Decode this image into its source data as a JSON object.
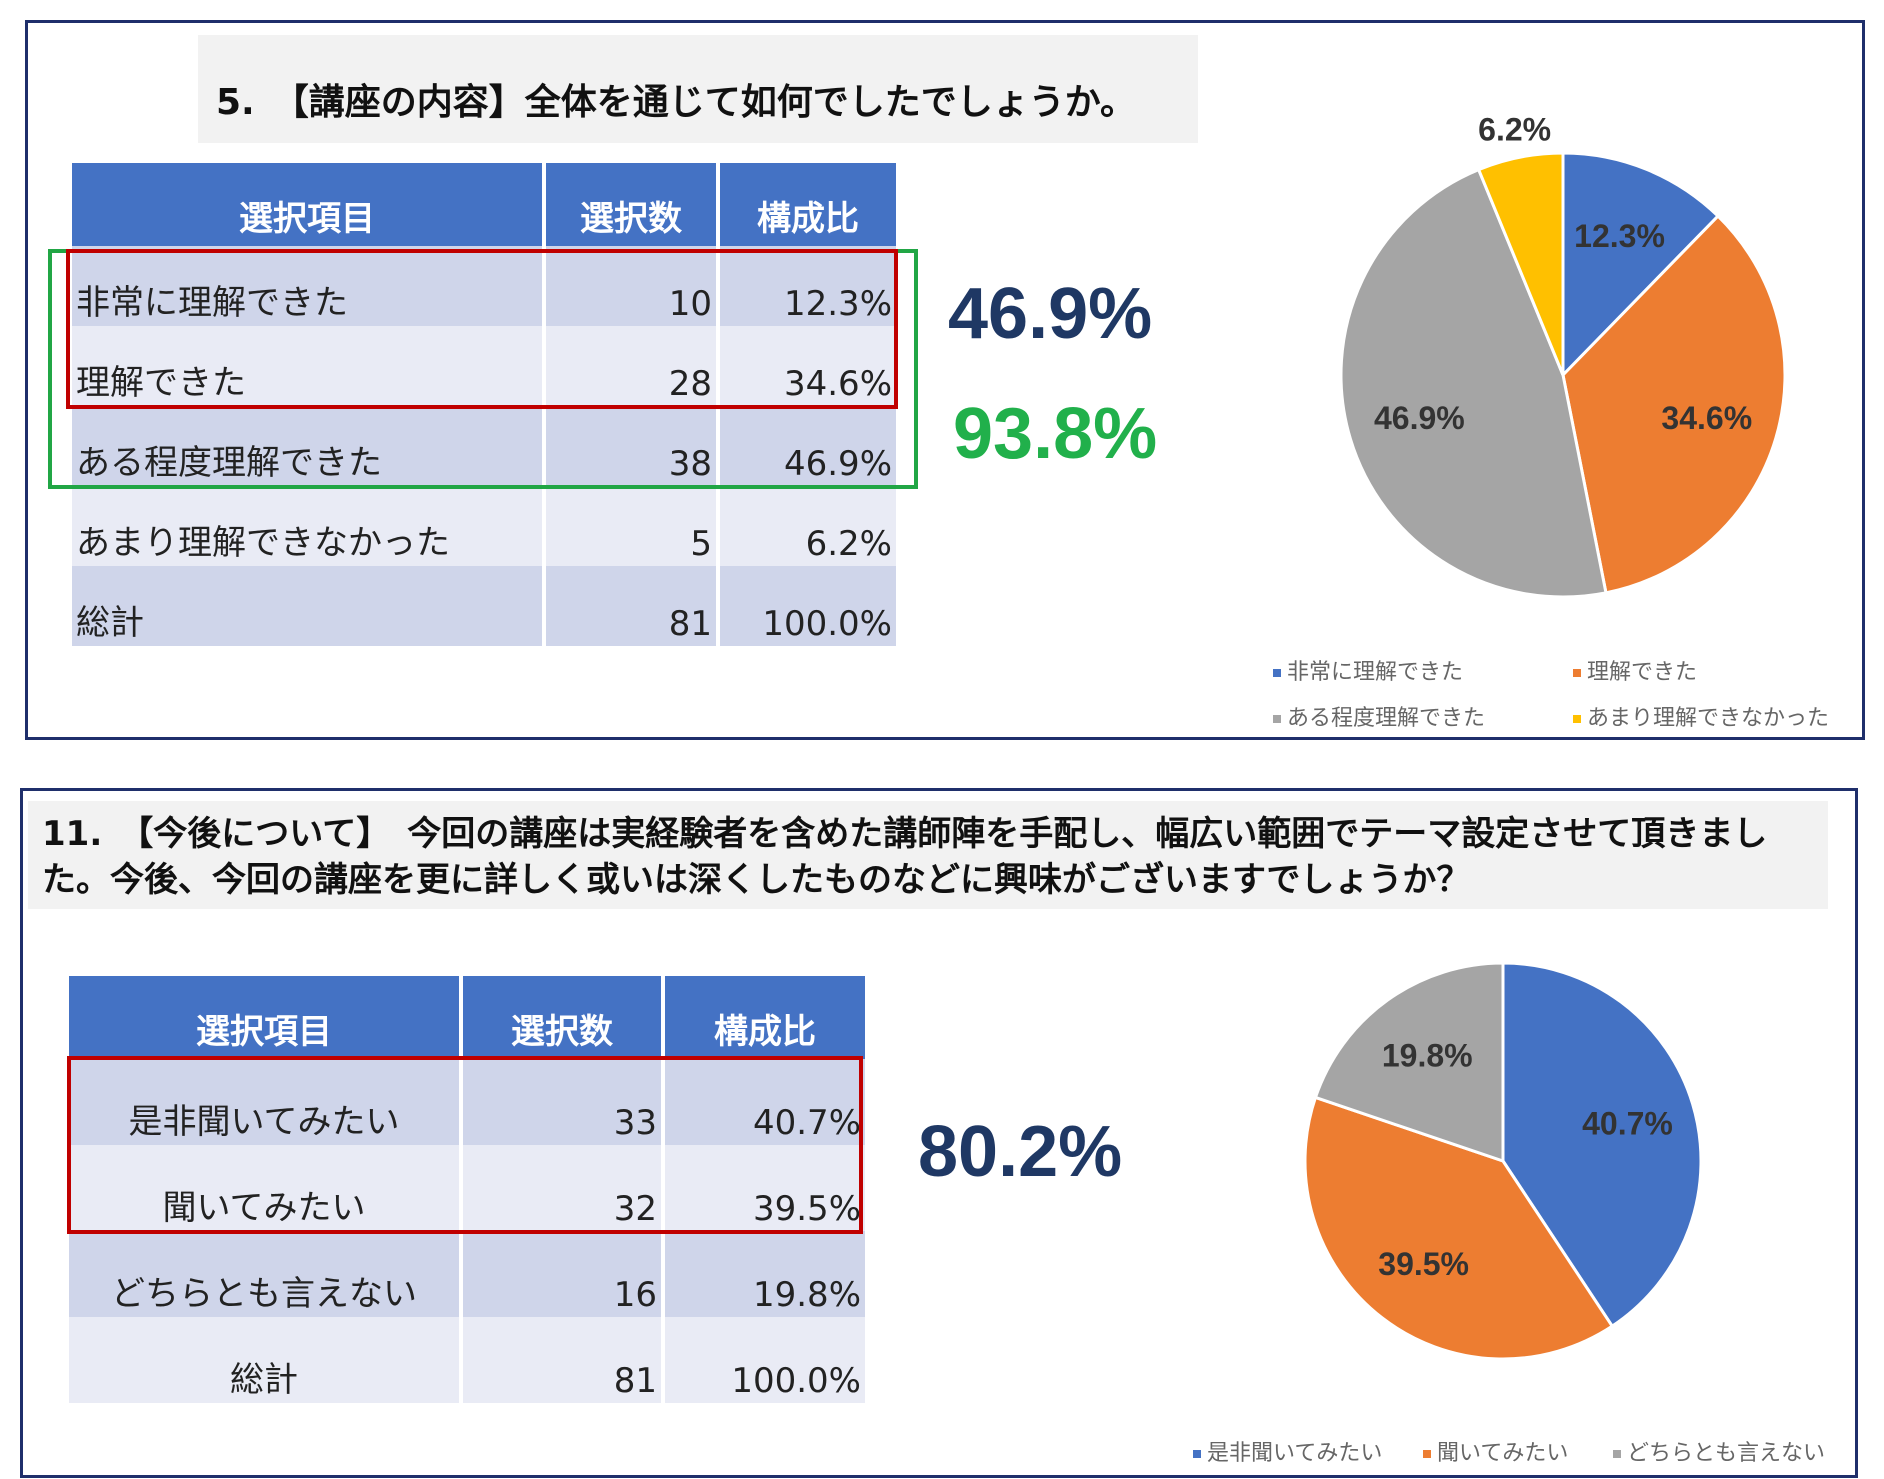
{
  "colors": {
    "blue": "#4472c4",
    "orange": "#ed7d31",
    "gray": "#a5a5a5",
    "yellow": "#ffc000",
    "navy": "#1f3864",
    "green": "#21b04b",
    "red": "#c00000"
  },
  "headers": {
    "item": "選択項目",
    "count": "選択数",
    "ratio": "構成比"
  },
  "panel1": {
    "title": "5.　【講座の内容】全体を通じて如何でしたでしょうか。",
    "rows": [
      {
        "label": "非常に理解できた",
        "count": "10",
        "ratio": "12.3%"
      },
      {
        "label": "理解できた",
        "count": "28",
        "ratio": "34.6%"
      },
      {
        "label": "ある程度理解できた",
        "count": "38",
        "ratio": "46.9%"
      },
      {
        "label": "あまり理解できなかった",
        "count": "5",
        "ratio": "6.2%"
      },
      {
        "label": "総計",
        "count": "81",
        "ratio": "100.0%"
      }
    ],
    "summary_a": "46.9%",
    "summary_b": "93.8%"
  },
  "panel2": {
    "title": "11.　【今後について】　今回の講座は実経験者を含めた講師陣を手配し、幅広い範囲でテーマ設定させて頂きました。今後、今回の講座を更に詳しく或いは深くしたものなどに興味がございますでしょうか？",
    "rows": [
      {
        "label": "是非聞いてみたい",
        "count": "33",
        "ratio": "40.7%"
      },
      {
        "label": "聞いてみたい",
        "count": "32",
        "ratio": "39.5%"
      },
      {
        "label": "どちらとも言えない",
        "count": "16",
        "ratio": "19.8%"
      },
      {
        "label": "総計",
        "count": "81",
        "ratio": "100.0%"
      }
    ],
    "summary": "80.2%"
  },
  "chart_data": [
    {
      "type": "pie",
      "categories": [
        "非常に理解できた",
        "理解できた",
        "ある程度理解できた",
        "あまり理解できなかった"
      ],
      "values": [
        12.3,
        34.6,
        46.9,
        6.2
      ],
      "labels": [
        "12.3%",
        "34.6%",
        "46.9%",
        "6.2%"
      ],
      "colors": [
        "#4472c4",
        "#ed7d31",
        "#a5a5a5",
        "#ffc000"
      ],
      "legend": "bottom"
    },
    {
      "type": "pie",
      "categories": [
        "是非聞いてみたい",
        "聞いてみたい",
        "どちらとも言えない"
      ],
      "values": [
        40.7,
        39.5,
        19.8
      ],
      "labels": [
        "40.7%",
        "39.5%",
        "19.8%"
      ],
      "colors": [
        "#4472c4",
        "#ed7d31",
        "#a5a5a5"
      ],
      "legend": "bottom"
    }
  ]
}
